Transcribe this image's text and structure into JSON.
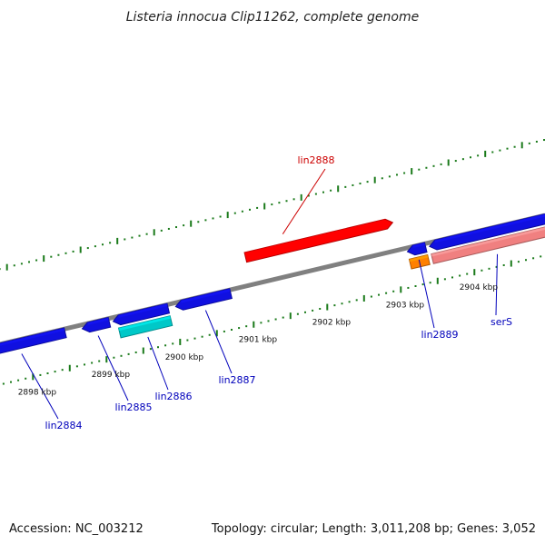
{
  "title": "Listeria innocua Clip11262, complete genome",
  "footer": {
    "accession": "Accession: NC_003212",
    "summary": "Topology: circular; Length: 3,011,208 bp; Genes: 3,052"
  },
  "colors": {
    "backbone": "#808080",
    "tick": "#1a7a1a",
    "cds_blue": "#1010e0",
    "highlight_red": "#ff0000",
    "cyan": "#00c8c8",
    "orange": "#ff8000",
    "pink": "#f08080",
    "label_blue": "#0000bb",
    "label_red": "#cc0000"
  },
  "scale": {
    "unit": "kbp",
    "tick_labels": [
      {
        "kbp": 2898,
        "text": "2898 kbp"
      },
      {
        "kbp": 2899,
        "text": "2899 kbp"
      },
      {
        "kbp": 2900,
        "text": "2900 kbp"
      },
      {
        "kbp": 2901,
        "text": "2901 kbp"
      },
      {
        "kbp": 2902,
        "text": "2902 kbp"
      },
      {
        "kbp": 2903,
        "text": "2903 kbp"
      },
      {
        "kbp": 2904,
        "text": "2904 kbp"
      }
    ]
  },
  "genes": [
    {
      "name": "lin2884",
      "label": "lin2884",
      "strand": "reverse",
      "start_kbp": 2897.3,
      "end_kbp": 2898.55,
      "color": "#1010e0",
      "label_color": "#0000bb"
    },
    {
      "name": "lin2885",
      "label": "lin2885",
      "strand": "reverse",
      "start_kbp": 2898.78,
      "end_kbp": 2899.15,
      "color": "#1010e0",
      "label_color": "#0000bb"
    },
    {
      "name": "lin2886-upper",
      "label": "",
      "strand": "reverse",
      "start_kbp": 2899.2,
      "end_kbp": 2899.95,
      "color": "#1010e0",
      "label_color": "#0000bb"
    },
    {
      "name": "lin2886",
      "label": "lin2886",
      "strand": "none",
      "track": "lower",
      "start_kbp": 2899.25,
      "end_kbp": 2899.95,
      "color": "#00c8c8",
      "label_color": "#0000bb"
    },
    {
      "name": "lin2887",
      "label": "lin2887",
      "strand": "reverse",
      "start_kbp": 2900.05,
      "end_kbp": 2900.8,
      "color": "#1010e0",
      "label_color": "#0000bb"
    },
    {
      "name": "lin2888",
      "label": "lin2888",
      "strand": "forward",
      "track": "top",
      "start_kbp": 2901.1,
      "end_kbp": 2903.1,
      "color": "#ff0000",
      "label_color": "#cc0000"
    },
    {
      "name": "lin2889",
      "label": "lin2889",
      "strand": "reverse",
      "start_kbp": 2903.2,
      "end_kbp": 2903.45,
      "color": "#1010e0",
      "label_color": "#0000bb"
    },
    {
      "name": "lin2889-orange",
      "label": "",
      "strand": "none",
      "track": "lower",
      "start_kbp": 2903.2,
      "end_kbp": 2903.45,
      "color": "#ff8000",
      "label_color": "#0000bb"
    },
    {
      "name": "serS-upper",
      "label": "",
      "strand": "reverse",
      "start_kbp": 2903.5,
      "end_kbp": 2905.2,
      "color": "#1010e0",
      "label_color": "#0000bb"
    },
    {
      "name": "serS",
      "label": "serS",
      "strand": "none",
      "track": "lower",
      "start_kbp": 2903.5,
      "end_kbp": 2905.2,
      "color": "#f08080",
      "label_color": "#0000bb"
    }
  ]
}
